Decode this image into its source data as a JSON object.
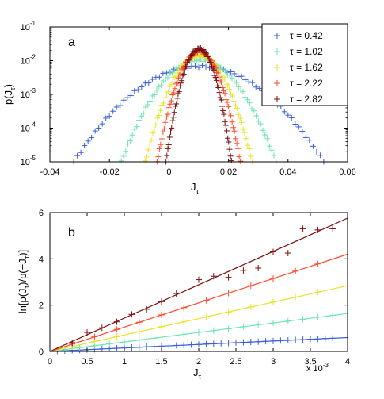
{
  "chart_data": [
    {
      "type": "scatter",
      "panel_label": "a",
      "xlabel_main": "J",
      "xlabel_sub": "τ",
      "ylabel_main": "p(J",
      "ylabel_sub": "τ",
      "ylabel_close": ")",
      "xlim": [
        -0.04,
        0.06
      ],
      "ylim": [
        1e-05,
        0.1
      ],
      "yscale": "log",
      "xticks": [
        -0.04,
        -0.02,
        0,
        0.02,
        0.04,
        0.06
      ],
      "xtick_labels": [
        "-0.04",
        "-0.02",
        "0",
        "0.02",
        "0.04",
        "0.06"
      ],
      "yticks": [
        {
          "base": "10",
          "exp": "-5",
          "value": 1e-05
        },
        {
          "base": "10",
          "exp": "-4",
          "value": 0.0001
        },
        {
          "base": "10",
          "exp": "-3",
          "value": 0.001
        },
        {
          "base": "10",
          "exp": "-2",
          "value": 0.01
        },
        {
          "base": "10",
          "exp": "-1",
          "value": 0.1
        }
      ],
      "legend_position": "top-right",
      "series": [
        {
          "name": "τ = 0.42",
          "color": "#3a5fd8",
          "mean": 0.0102,
          "peak": 0.0068,
          "xmin": -0.032,
          "xmax": 0.052
        },
        {
          "name": "τ = 1.02",
          "color": "#6de3b0",
          "mean": 0.0102,
          "peak": 0.0105,
          "xmin": -0.016,
          "xmax": 0.036
        },
        {
          "name": "τ = 1.62",
          "color": "#e7e327",
          "mean": 0.0102,
          "peak": 0.0142,
          "xmin": -0.008,
          "xmax": 0.028
        },
        {
          "name": "τ = 2.22",
          "color": "#ff4a2a",
          "mean": 0.0102,
          "peak": 0.0185,
          "xmin": -0.004,
          "xmax": 0.024
        },
        {
          "name": "τ = 2.82",
          "color": "#7a0f0f",
          "mean": 0.0102,
          "peak": 0.0225,
          "xmin": -0.001,
          "xmax": 0.021
        }
      ]
    },
    {
      "type": "scatter",
      "panel_label": "b",
      "xlabel_main": "J",
      "xlabel_sub": "τ",
      "ylabel_parts": [
        "ln[p(J",
        "τ",
        ")/p(−J",
        "τ",
        ")]"
      ],
      "xlim": [
        0,
        4
      ],
      "ylim": [
        0,
        6
      ],
      "xticks": [
        0,
        0.5,
        1,
        1.5,
        2,
        2.5,
        3,
        3.5,
        4
      ],
      "xtick_labels": [
        "0",
        "0.5",
        "1",
        "1.5",
        "2",
        "2.5",
        "3",
        "3.5",
        "4"
      ],
      "yticks": [
        0,
        2,
        4,
        6
      ],
      "ytick_labels": [
        "0",
        "2",
        "4",
        "6"
      ],
      "x_multiplier_base": "x 10",
      "x_multiplier_exp": "-3",
      "series": [
        {
          "color": "#3a5fd8",
          "slope": 0.15,
          "x": [
            0.1,
            0.2,
            0.3,
            0.4,
            0.5,
            0.6,
            0.7,
            0.8,
            0.9,
            1.0,
            1.1,
            1.2,
            1.3,
            1.4,
            1.5,
            1.6,
            1.7,
            1.8,
            1.9,
            2.0,
            2.1,
            2.2,
            2.3,
            2.4,
            2.5,
            2.6,
            2.7,
            2.8,
            2.9,
            3.0,
            3.1,
            3.2,
            3.3,
            3.4,
            3.5,
            3.6,
            3.7,
            3.8
          ],
          "y": [
            0.02,
            0.03,
            0.05,
            0.06,
            0.08,
            0.09,
            0.11,
            0.12,
            0.14,
            0.15,
            0.17,
            0.18,
            0.2,
            0.21,
            0.23,
            0.24,
            0.26,
            0.27,
            0.29,
            0.3,
            0.32,
            0.33,
            0.35,
            0.36,
            0.38,
            0.39,
            0.41,
            0.42,
            0.44,
            0.45,
            0.47,
            0.48,
            0.5,
            0.51,
            0.53,
            0.54,
            0.56,
            0.57
          ]
        },
        {
          "color": "#6de3b0",
          "slope": 0.41,
          "x": [
            0.2,
            0.4,
            0.6,
            0.8,
            1.0,
            1.2,
            1.4,
            1.6,
            1.8,
            2.0,
            2.2,
            2.4,
            2.6,
            2.8,
            3.0,
            3.2,
            3.4,
            3.6,
            3.8
          ],
          "y": [
            0.08,
            0.16,
            0.25,
            0.33,
            0.41,
            0.49,
            0.57,
            0.66,
            0.74,
            0.82,
            0.9,
            0.98,
            1.07,
            1.15,
            1.23,
            1.31,
            1.39,
            1.48,
            1.56
          ]
        },
        {
          "color": "#e7e327",
          "slope": 0.71,
          "x": [
            0.3,
            0.6,
            0.9,
            1.2,
            1.5,
            1.8,
            2.1,
            2.4,
            2.7,
            3.0,
            3.3,
            3.6
          ],
          "y": [
            0.21,
            0.43,
            0.64,
            0.85,
            1.07,
            1.28,
            1.49,
            1.7,
            1.92,
            2.13,
            2.34,
            2.56
          ]
        },
        {
          "color": "#ff4a2a",
          "slope": 1.05,
          "x": [
            0.3,
            0.6,
            0.9,
            1.2,
            1.5,
            1.8,
            2.1,
            2.4,
            2.7,
            3.0,
            3.3,
            3.6
          ],
          "y": [
            0.32,
            0.63,
            0.95,
            1.26,
            1.58,
            1.89,
            2.21,
            2.52,
            2.84,
            3.15,
            3.47,
            3.78
          ]
        },
        {
          "color": "#7a0f0f",
          "slope": 1.44,
          "x": [
            0.3,
            0.5,
            0.7,
            0.9,
            1.1,
            1.3,
            1.5,
            1.7,
            2.0,
            2.2,
            2.4,
            2.6,
            2.8,
            3.0,
            3.2,
            3.4,
            3.6,
            3.8
          ],
          "y": [
            0.38,
            0.82,
            1.02,
            1.28,
            1.6,
            1.82,
            2.15,
            2.5,
            3.1,
            3.25,
            3.2,
            3.5,
            3.6,
            4.3,
            4.25,
            5.3,
            5.25,
            5.3
          ]
        }
      ]
    }
  ]
}
